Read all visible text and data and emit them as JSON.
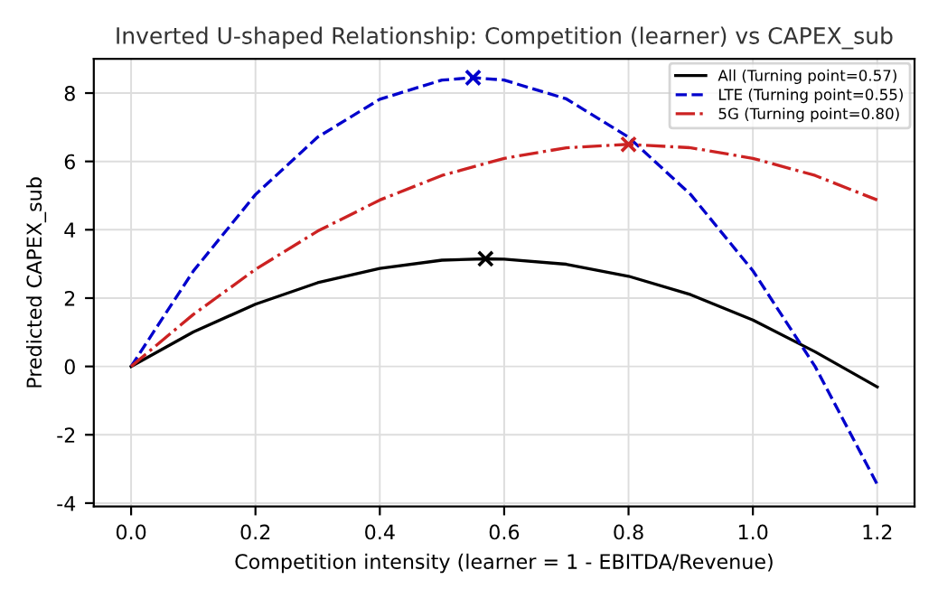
{
  "chart_data": {
    "type": "line",
    "title": "Inverted U-shaped Relationship: Competition (learner) vs CAPEX_sub",
    "xlabel": "Competition intensity (learner = 1 - EBITDA/Revenue)",
    "ylabel": "Predicted CAPEX_sub",
    "xlim": [
      -0.06,
      1.26
    ],
    "ylim": [
      -4.1,
      9.0
    ],
    "xticks": [
      {
        "value": 0,
        "label": "0.0"
      },
      0.2,
      0.4,
      0.6,
      0.8,
      {
        "value": 1,
        "label": "1.0"
      },
      1.2
    ],
    "yticks": [
      -4,
      -2,
      0,
      2,
      4,
      6,
      8
    ],
    "grid": true,
    "legend": "top right",
    "series": [
      {
        "name": "All (Turning point=0.57)",
        "color": "#000000",
        "line_style": "solid",
        "x": [
          0,
          0.1,
          0.2,
          0.3,
          0.4,
          0.5,
          0.57,
          0.6,
          0.7,
          0.8,
          0.9,
          1.0,
          1.1,
          1.2
        ],
        "values": [
          0,
          1.01,
          1.82,
          2.45,
          2.87,
          3.11,
          3.15,
          3.14,
          2.99,
          2.64,
          2.1,
          1.36,
          0.43,
          -0.6
        ]
      },
      {
        "name": "LTE (Turning point=0.55)",
        "color": "#0000cc",
        "line_style": "dashed",
        "x": [
          0,
          0.1,
          0.2,
          0.3,
          0.4,
          0.5,
          0.55,
          0.6,
          0.7,
          0.8,
          0.9,
          1.0,
          1.1,
          1.2
        ],
        "values": [
          0,
          2.79,
          5.03,
          6.71,
          7.82,
          8.38,
          8.45,
          8.38,
          7.83,
          6.71,
          5.03,
          2.8,
          0.0,
          -3.45
        ]
      },
      {
        "name": "5G (Turning point=0.80)",
        "color": "#cc2222",
        "line_style": "dashdot",
        "x": [
          0,
          0.1,
          0.2,
          0.3,
          0.4,
          0.5,
          0.6,
          0.7,
          0.8,
          0.9,
          1.0,
          1.1,
          1.2
        ],
        "values": [
          0,
          1.52,
          2.84,
          3.96,
          4.87,
          5.59,
          6.09,
          6.4,
          6.5,
          6.4,
          6.09,
          5.59,
          4.87
        ]
      },
      {
        "type": "scatter",
        "marker": "cross",
        "x": [
          0.57,
          0.55,
          0.8
        ],
        "values": [
          3.15,
          8.45,
          6.5
        ],
        "colors": [
          "#000000",
          "#0000cc",
          "#cc2222"
        ]
      }
    ]
  }
}
